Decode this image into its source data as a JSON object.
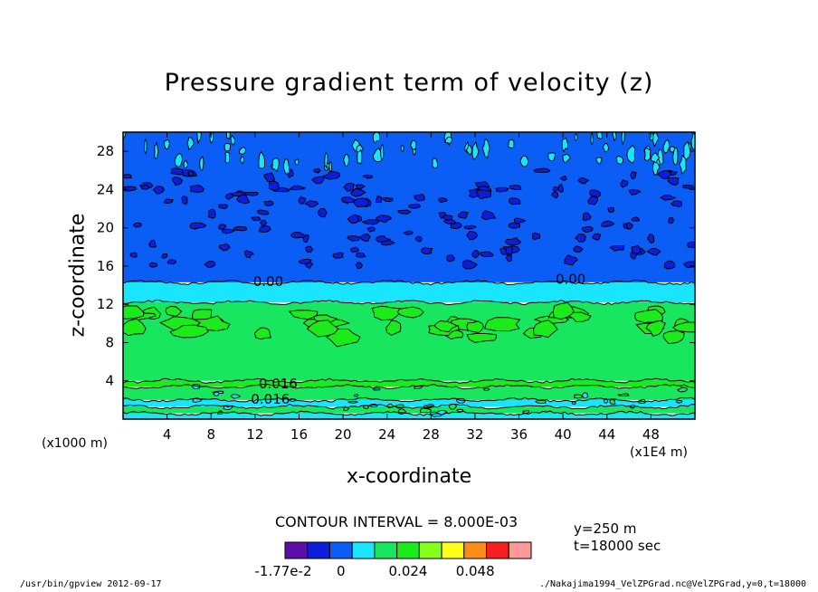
{
  "chart_data": {
    "type": "heatmap",
    "title": "Pressure gradient term of velocity (z)",
    "xlabel": "x-coordinate",
    "ylabel": "z-coordinate",
    "x_unit_left": "(x1000 m)",
    "x_unit_right": "(x1E4 m)",
    "x_range": [
      0,
      52
    ],
    "y_range": [
      0,
      30
    ],
    "x_ticks": [
      "4",
      "8",
      "12",
      "16",
      "20",
      "24",
      "28",
      "32",
      "36",
      "40",
      "44",
      "48"
    ],
    "y_ticks": [
      "4",
      "8",
      "12",
      "16",
      "20",
      "24",
      "28"
    ],
    "contour_interval_text": "CONTOUR INTERVAL = 8.000E-03",
    "contour_labels": [
      {
        "text": "0.00",
        "x": 13.2,
        "z": 14.5
      },
      {
        "text": "0.00",
        "x": 40.7,
        "z": 14.7
      },
      {
        "text": "0.016",
        "x": 14.1,
        "z": 3.8
      },
      {
        "text": "0.016",
        "x": 13.4,
        "z": 2.2
      }
    ],
    "bands": [
      {
        "z0": 0.0,
        "z1": 0.6,
        "value": "0",
        "color": "#19E5FF"
      },
      {
        "z0": 0.6,
        "z1": 1.3,
        "value": "0.008",
        "color": "#18E65F"
      },
      {
        "z0": 1.3,
        "z1": 2.0,
        "value": "0",
        "color": "#19E5FF"
      },
      {
        "z0": 2.0,
        "z1": 3.4,
        "value": "0.008",
        "color": "#18E65F"
      },
      {
        "z0": 3.4,
        "z1": 4.0,
        "value": "0.016",
        "color": "#1BEA1B"
      },
      {
        "z0": 4.0,
        "z1": 12.2,
        "value": "0.008",
        "color": "#18E65F"
      },
      {
        "z0": 12.2,
        "z1": 14.3,
        "value": "0",
        "color": "#19E5FF"
      },
      {
        "z0": 14.3,
        "z1": 30.0,
        "value": "-0.008",
        "color": "#0A5DF5"
      }
    ],
    "colorbar": {
      "colors": [
        "#5B0FA8",
        "#0A1EDB",
        "#0A5DF5",
        "#19E5FF",
        "#18E65F",
        "#1BEA1B",
        "#86FF1C",
        "#FFFF19",
        "#FF8C19",
        "#F51F1F",
        "#FF9999"
      ],
      "tick_labels": [
        "-1.77e-2",
        "0",
        "0.024",
        "0.048"
      ]
    }
  },
  "annotations": {
    "y_value": "y=250  m",
    "t_value": "t=18000  sec"
  },
  "footer": {
    "left": "/usr/bin/gpview   2012-09-17",
    "right": "./Nakajima1994_VelZPGrad.nc@VelZPGrad,y=0,t=18000"
  }
}
